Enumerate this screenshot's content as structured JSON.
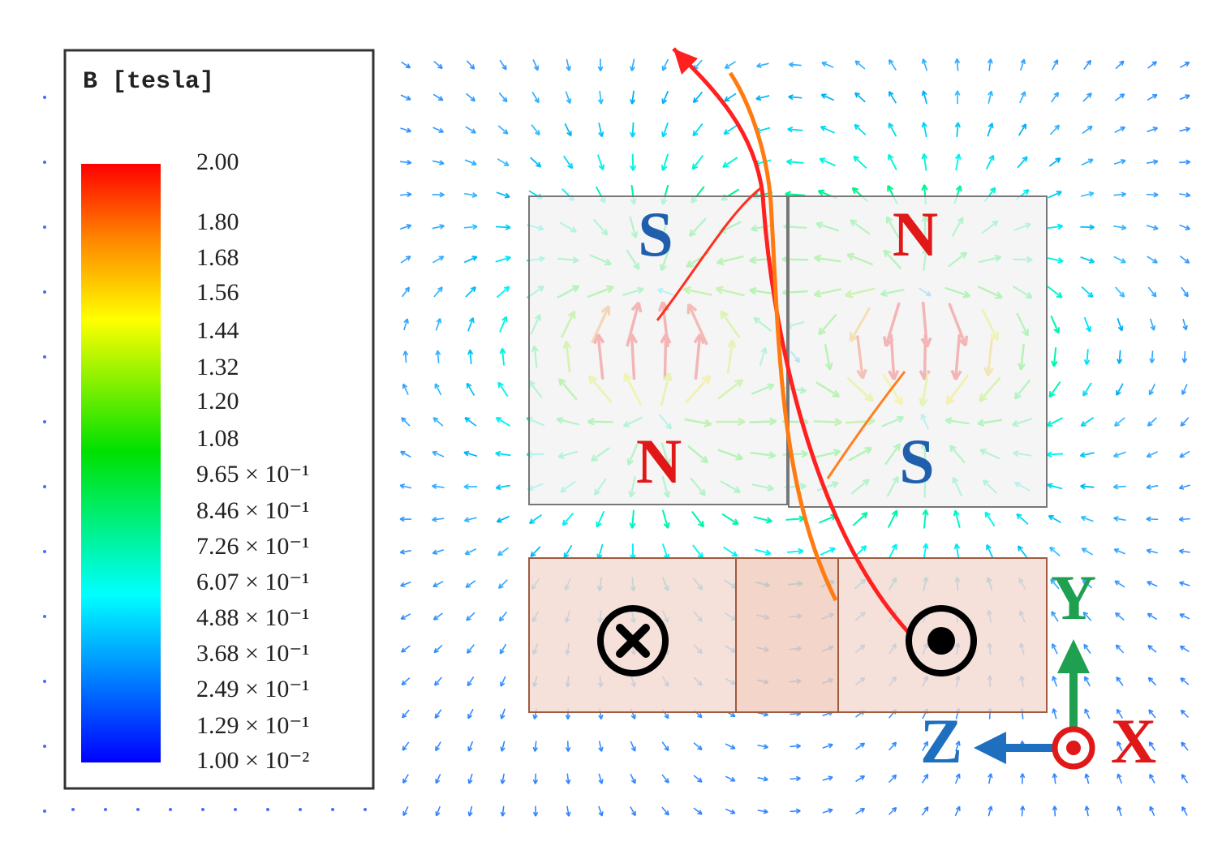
{
  "legend": {
    "title": "B [tesla]",
    "labels": [
      "2.00",
      "1.80",
      "1.68",
      "1.56",
      "1.44",
      "1.32",
      "1.20",
      "1.08",
      "9.65 × 10⁻¹",
      "8.46 × 10⁻¹",
      "7.26 × 10⁻¹",
      "6.07 × 10⁻¹",
      "4.88 × 10⁻¹",
      "3.68 × 10⁻¹",
      "2.49 × 10⁻¹",
      "1.29 × 10⁻¹",
      "1.00 × 10⁻²"
    ]
  },
  "magnets": [
    {
      "label": "S"
    },
    {
      "label": "N"
    },
    {
      "label": "N"
    },
    {
      "label": "S"
    }
  ],
  "axes": {
    "y": "Y",
    "z": "Z",
    "x": "X"
  }
}
